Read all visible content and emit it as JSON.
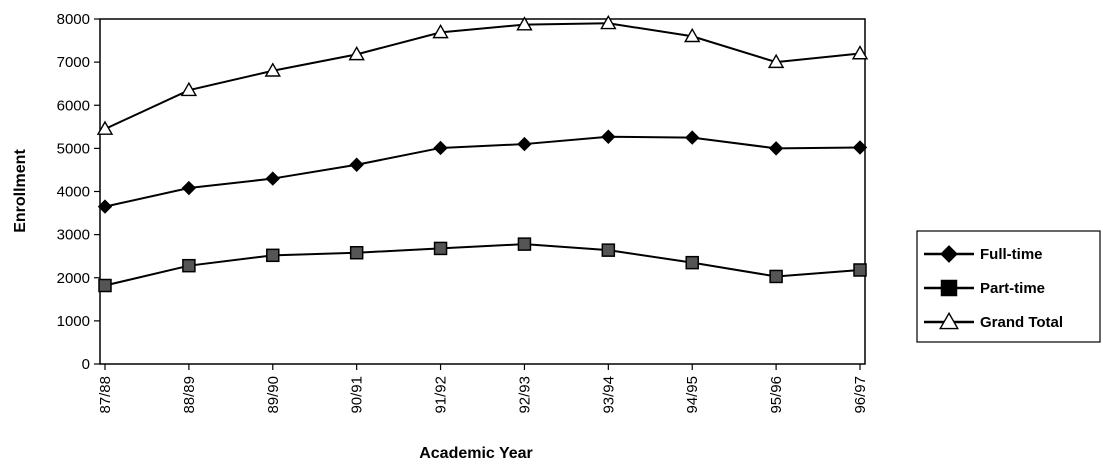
{
  "chart_data": {
    "type": "line",
    "xlabel": "Academic Year",
    "ylabel": "Enrollment",
    "categories": [
      "87/88",
      "88/89",
      "89/90",
      "90/91",
      "91/92",
      "92/93",
      "93/94",
      "94/95",
      "95/96",
      "96/97"
    ],
    "ylim": [
      0,
      8000
    ],
    "yticks": [
      0,
      1000,
      2000,
      3000,
      4000,
      5000,
      6000,
      7000,
      8000
    ],
    "grid": false,
    "legend_position": "right",
    "series": [
      {
        "name": "Full-time",
        "marker": "diamond",
        "values": [
          3650,
          4080,
          4300,
          4620,
          5010,
          5100,
          5270,
          5250,
          5000,
          5020
        ]
      },
      {
        "name": "Part-time",
        "marker": "square",
        "values": [
          1820,
          2280,
          2520,
          2580,
          2680,
          2780,
          2640,
          2350,
          2030,
          2180
        ]
      },
      {
        "name": "Grand Total",
        "marker": "triangle",
        "values": [
          5450,
          6350,
          6800,
          7180,
          7690,
          7870,
          7900,
          7600,
          7000,
          7200
        ]
      }
    ]
  }
}
